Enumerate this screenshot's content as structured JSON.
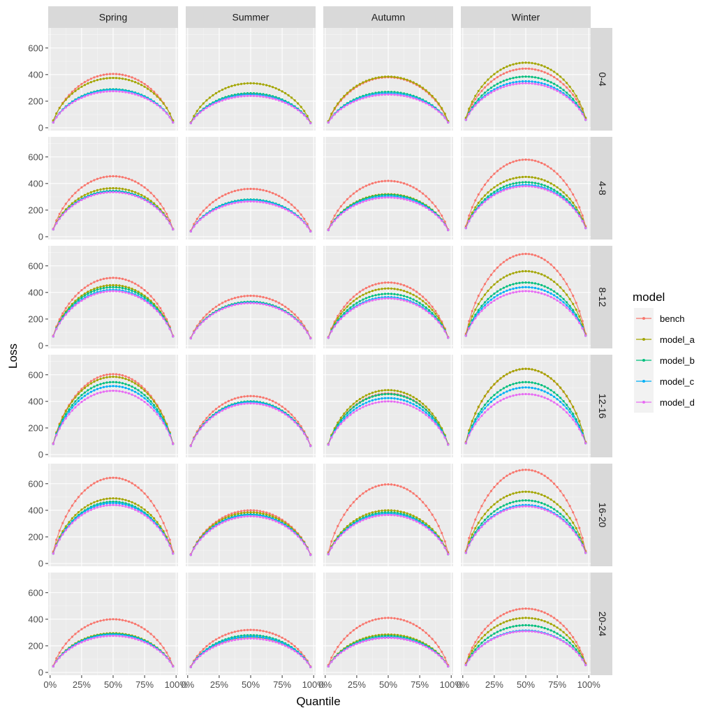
{
  "chart_data": {
    "type": "line",
    "xlabel": "Quantile",
    "ylabel": "Loss",
    "x_tick_labels": [
      "0%",
      "25%",
      "50%",
      "75%",
      "100%"
    ],
    "y_tick_labels": [
      "0",
      "200",
      "400",
      "600"
    ],
    "xlim": [
      0,
      1
    ],
    "ylim": [
      0,
      730
    ],
    "grid": true,
    "legend": {
      "title": "model",
      "position": "right"
    },
    "columns": [
      "Spring",
      "Summer",
      "Autumn",
      "Winter"
    ],
    "rows": [
      "0-4",
      "4-8",
      "8-12",
      "12-16",
      "16-20",
      "20-24"
    ],
    "series_names": [
      "bench",
      "model_a",
      "model_b",
      "model_c",
      "model_d"
    ],
    "series_colors": [
      "#F8766D",
      "#A3A500",
      "#00BF7D",
      "#00B0F6",
      "#E76BF3"
    ],
    "x": [
      0.025,
      0.05,
      0.075,
      0.1,
      0.125,
      0.15,
      0.175,
      0.2,
      0.225,
      0.25,
      0.275,
      0.3,
      0.325,
      0.35,
      0.375,
      0.4,
      0.425,
      0.45,
      0.475,
      0.5,
      0.525,
      0.55,
      0.575,
      0.6,
      0.625,
      0.65,
      0.675,
      0.7,
      0.725,
      0.75,
      0.775,
      0.8,
      0.825,
      0.85,
      0.875,
      0.9,
      0.925,
      0.95,
      0.975
    ],
    "curve_model": "loss(q) ≈ ends + (peak − ends) · (4q(1−q))^shape; peak at q≈0.5",
    "panels": [
      {
        "row": "0-4",
        "column": "Spring",
        "peak": [
          405,
          375,
          290,
          285,
          275
        ],
        "ends": [
          50,
          55,
          40,
          40,
          40
        ]
      },
      {
        "row": "0-4",
        "column": "Summer",
        "peak": [
          255,
          335,
          260,
          250,
          240
        ],
        "ends": [
          40,
          40,
          35,
          35,
          35
        ]
      },
      {
        "row": "0-4",
        "column": "Autumn",
        "peak": [
          380,
          385,
          270,
          260,
          250
        ],
        "ends": [
          45,
          50,
          40,
          40,
          40
        ]
      },
      {
        "row": "0-4",
        "column": "Winter",
        "peak": [
          445,
          490,
          385,
          350,
          335
        ],
        "ends": [
          70,
          75,
          60,
          60,
          60
        ]
      },
      {
        "row": "4-8",
        "column": "Spring",
        "peak": [
          455,
          365,
          345,
          340,
          335
        ],
        "ends": [
          60,
          55,
          55,
          55,
          55
        ]
      },
      {
        "row": "4-8",
        "column": "Summer",
        "peak": [
          360,
          275,
          280,
          275,
          265
        ],
        "ends": [
          45,
          40,
          40,
          40,
          40
        ]
      },
      {
        "row": "4-8",
        "column": "Autumn",
        "peak": [
          420,
          320,
          315,
          305,
          295
        ],
        "ends": [
          55,
          50,
          50,
          50,
          50
        ]
      },
      {
        "row": "4-8",
        "column": "Winter",
        "peak": [
          580,
          450,
          410,
          390,
          380
        ],
        "ends": [
          80,
          70,
          65,
          65,
          65
        ]
      },
      {
        "row": "8-12",
        "column": "Spring",
        "peak": [
          510,
          455,
          440,
          420,
          410
        ],
        "ends": [
          75,
          70,
          70,
          70,
          70
        ]
      },
      {
        "row": "8-12",
        "column": "Summer",
        "peak": [
          375,
          330,
          330,
          325,
          320
        ],
        "ends": [
          60,
          55,
          55,
          55,
          55
        ]
      },
      {
        "row": "8-12",
        "column": "Autumn",
        "peak": [
          475,
          430,
          390,
          365,
          355
        ],
        "ends": [
          65,
          60,
          60,
          60,
          60
        ]
      },
      {
        "row": "8-12",
        "column": "Winter",
        "peak": [
          690,
          560,
          475,
          440,
          410
        ],
        "ends": [
          90,
          80,
          75,
          75,
          75
        ]
      },
      {
        "row": "12-16",
        "column": "Spring",
        "peak": [
          605,
          585,
          545,
          515,
          480
        ],
        "ends": [
          85,
          80,
          80,
          80,
          80
        ]
      },
      {
        "row": "12-16",
        "column": "Summer",
        "peak": [
          440,
          400,
          400,
          395,
          385
        ],
        "ends": [
          70,
          65,
          65,
          65,
          65
        ]
      },
      {
        "row": "12-16",
        "column": "Autumn",
        "peak": [
          460,
          485,
          455,
          425,
          400
        ],
        "ends": [
          80,
          80,
          75,
          75,
          75
        ]
      },
      {
        "row": "12-16",
        "column": "Winter",
        "peak": [
          645,
          645,
          545,
          505,
          455
        ],
        "ends": [
          95,
          90,
          85,
          85,
          85
        ]
      },
      {
        "row": "16-20",
        "column": "Spring",
        "peak": [
          645,
          490,
          465,
          455,
          440
        ],
        "ends": [
          90,
          80,
          75,
          75,
          75
        ]
      },
      {
        "row": "16-20",
        "column": "Summer",
        "peak": [
          400,
          385,
          370,
          365,
          355
        ],
        "ends": [
          70,
          65,
          65,
          65,
          65
        ]
      },
      {
        "row": "16-20",
        "column": "Autumn",
        "peak": [
          595,
          400,
          385,
          375,
          365
        ],
        "ends": [
          85,
          75,
          70,
          70,
          70
        ]
      },
      {
        "row": "16-20",
        "column": "Winter",
        "peak": [
          705,
          540,
          475,
          440,
          430
        ],
        "ends": [
          95,
          85,
          80,
          80,
          80
        ]
      },
      {
        "row": "20-24",
        "column": "Spring",
        "peak": [
          400,
          295,
          290,
          285,
          275
        ],
        "ends": [
          50,
          45,
          45,
          45,
          45
        ]
      },
      {
        "row": "20-24",
        "column": "Summer",
        "peak": [
          320,
          265,
          280,
          270,
          255
        ],
        "ends": [
          45,
          40,
          40,
          40,
          40
        ]
      },
      {
        "row": "20-24",
        "column": "Autumn",
        "peak": [
          410,
          285,
          275,
          265,
          260
        ],
        "ends": [
          55,
          45,
          45,
          45,
          45
        ]
      },
      {
        "row": "20-24",
        "column": "Winter",
        "peak": [
          480,
          410,
          355,
          315,
          310
        ],
        "ends": [
          70,
          60,
          55,
          55,
          55
        ]
      }
    ]
  }
}
